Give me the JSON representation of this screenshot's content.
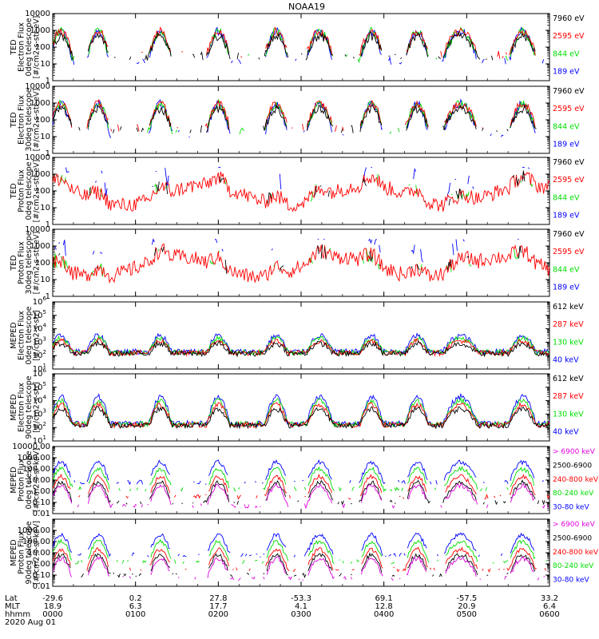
{
  "chart_data": {
    "type": "line",
    "title": "NOAA19",
    "x_hours": [
      0,
      6
    ],
    "panels": [
      {
        "id": "ted-electron-0deg",
        "ylabel": [
          "TED",
          "Electron Flux",
          "0deg telescope",
          "[#/cm2-s-str-eV]"
        ],
        "ylim": [
          1,
          10000
        ],
        "ticks": [
          "1",
          "10",
          "100",
          "1000",
          "10000"
        ],
        "tick_exponents": [
          0,
          1,
          2,
          3,
          4
        ],
        "legend": [
          {
            "label": "7960 eV",
            "color": "#000000"
          },
          {
            "label": "2595 eV",
            "color": "#ff0000"
          },
          {
            "label": "844 eV",
            "color": "#00dd00"
          },
          {
            "label": "189 eV",
            "color": "#0000ff"
          }
        ]
      },
      {
        "id": "ted-electron-30deg",
        "ylabel": [
          "TED",
          "Electron Flux",
          "30deg telescope",
          "[#/cm2-s-str-eV]"
        ],
        "ylim": [
          1,
          10000
        ],
        "ticks": [
          "1",
          "10",
          "100",
          "1000",
          "10000"
        ],
        "tick_exponents": [
          0,
          1,
          2,
          3,
          4
        ],
        "legend": [
          {
            "label": "7960 eV",
            "color": "#000000"
          },
          {
            "label": "2595 eV",
            "color": "#ff0000"
          },
          {
            "label": "844 eV",
            "color": "#00dd00"
          },
          {
            "label": "189 eV",
            "color": "#0000ff"
          }
        ]
      },
      {
        "id": "ted-proton-0deg",
        "ylabel": [
          "TED",
          "Proton Flux",
          "0deg telescope",
          "[#/cm2-s-str-eV]"
        ],
        "ylim": [
          1,
          10000
        ],
        "ticks": [
          "1",
          "10",
          "100",
          "1000",
          "10000"
        ],
        "tick_exponents": [
          0,
          1,
          2,
          3,
          4
        ],
        "legend": [
          {
            "label": "7960 eV",
            "color": "#000000"
          },
          {
            "label": "2595 eV",
            "color": "#ff0000"
          },
          {
            "label": "844 eV",
            "color": "#00dd00"
          },
          {
            "label": "189 eV",
            "color": "#0000ff"
          }
        ]
      },
      {
        "id": "ted-proton-30deg",
        "ylabel": [
          "TED",
          "Proton Flux",
          "30deg telescope",
          "[#/cm2-s-str-eV]"
        ],
        "ylim": [
          1,
          10000
        ],
        "ticks": [
          "1",
          "10",
          "100",
          "1000",
          "10000"
        ],
        "tick_exponents": [
          0,
          1,
          2,
          3,
          4
        ],
        "legend": [
          {
            "label": "7960 eV",
            "color": "#000000"
          },
          {
            "label": "2595 eV",
            "color": "#ff0000"
          },
          {
            "label": "844 eV",
            "color": "#00dd00"
          },
          {
            "label": "189 eV",
            "color": "#0000ff"
          }
        ]
      },
      {
        "id": "meped-electron-0deg",
        "ylabel": [
          "MEPED",
          "Electron Flux",
          "0deg telescope",
          "[#/cm2-s-str]"
        ],
        "ylim": [
          10,
          1000000
        ],
        "ticks": [
          "10",
          "10",
          "10",
          "10",
          "10",
          "10"
        ],
        "tick_exponents": [
          1,
          2,
          3,
          4,
          5,
          6
        ],
        "tick_sups": [
          "1",
          "2",
          "3",
          "4",
          "5",
          "6"
        ],
        "legend": [
          {
            "label": "612 keV",
            "color": "#000000"
          },
          {
            "label": "287 keV",
            "color": "#ff0000"
          },
          {
            "label": "130 keV",
            "color": "#00dd00"
          },
          {
            "label": "40 keV",
            "color": "#0000ff"
          }
        ]
      },
      {
        "id": "meped-electron-90deg",
        "ylabel": [
          "MEPED",
          "Electron Flux",
          "90deg telescope",
          "[#/cm2-s-str]"
        ],
        "ylim": [
          10,
          1000000
        ],
        "ticks": [
          "10",
          "10",
          "10",
          "10",
          "10",
          "10"
        ],
        "tick_exponents": [
          1,
          2,
          3,
          4,
          5,
          6
        ],
        "tick_sups": [
          "1",
          "2",
          "3",
          "4",
          "5",
          "6"
        ],
        "legend": [
          {
            "label": "612 keV",
            "color": "#000000"
          },
          {
            "label": "287 keV",
            "color": "#ff0000"
          },
          {
            "label": "130 keV",
            "color": "#00dd00"
          },
          {
            "label": "40 keV",
            "color": "#0000ff"
          }
        ]
      },
      {
        "id": "meped-proton-0deg",
        "ylabel": [
          "MEPED",
          "Proton Flux",
          "0deg telescope",
          "[#/cm2-s-sr-keV]"
        ],
        "ylim": [
          0.01,
          10000
        ],
        "ticks": [
          "0.01",
          "0.10",
          "1.00",
          "10.00",
          "100.00",
          "1000.00",
          "10000.00"
        ],
        "tick_exponents": [
          -2,
          -1,
          0,
          1,
          2,
          3,
          4
        ],
        "legend": [
          {
            "label": "> 6900 keV",
            "color": "#dd00dd"
          },
          {
            "label": "2500-6900",
            "color": "#000000"
          },
          {
            "label": "240-800 keV",
            "color": "#ff0000"
          },
          {
            "label": "80-240 keV",
            "color": "#00dd00"
          },
          {
            "label": "30-80 keV",
            "color": "#0000ff"
          }
        ]
      },
      {
        "id": "meped-proton-90deg",
        "ylabel": [
          "MEPED",
          "Proton Flux",
          "90deg telescope",
          "[#/cm2-s-sr-keV]"
        ],
        "ylim": [
          0.01,
          10000
        ],
        "ticks": [
          "0.01",
          "0.10",
          "1.00",
          "10.00",
          "100.00",
          "1000.00"
        ],
        "tick_exponents": [
          -2,
          -1,
          0,
          1,
          2,
          3
        ],
        "legend": [
          {
            "label": "> 6900 keV",
            "color": "#dd00dd"
          },
          {
            "label": "2500-6900",
            "color": "#000000"
          },
          {
            "label": "240-800 keV",
            "color": "#ff0000"
          },
          {
            "label": "80-240 keV",
            "color": "#00dd00"
          },
          {
            "label": "30-80 keV",
            "color": "#0000ff"
          }
        ]
      }
    ],
    "x_axis": {
      "row_labels": [
        "Lat",
        "MLT",
        "hhmm"
      ],
      "date": "2020 Aug 01",
      "ticks": [
        {
          "hour": 0,
          "lat": "-29.6",
          "mlt": "18.9",
          "hhmm": "0000"
        },
        {
          "hour": 1,
          "lat": "0.2",
          "mlt": "6.3",
          "hhmm": "0100"
        },
        {
          "hour": 2,
          "lat": "27.8",
          "mlt": "17.7",
          "hhmm": "0200"
        },
        {
          "hour": 3,
          "lat": "-53.3",
          "mlt": "4.1",
          "hhmm": "0300"
        },
        {
          "hour": 4,
          "lat": "69.1",
          "mlt": "12.8",
          "hhmm": "0400"
        },
        {
          "hour": 5,
          "lat": "-57.5",
          "mlt": "20.9",
          "hhmm": "0500"
        },
        {
          "hour": 6,
          "lat": "33.2",
          "mlt": "6.4",
          "hhmm": "0600"
        }
      ]
    },
    "activity_windows_hours": [
      [
        0.0,
        0.2
      ],
      [
        0.45,
        0.65
      ],
      [
        1.2,
        1.4
      ],
      [
        1.9,
        2.1
      ],
      [
        2.6,
        2.8
      ],
      [
        3.1,
        3.35
      ],
      [
        3.75,
        3.95
      ],
      [
        4.3,
        4.5
      ],
      [
        4.75,
        5.1
      ],
      [
        5.55,
        5.8
      ]
    ]
  }
}
